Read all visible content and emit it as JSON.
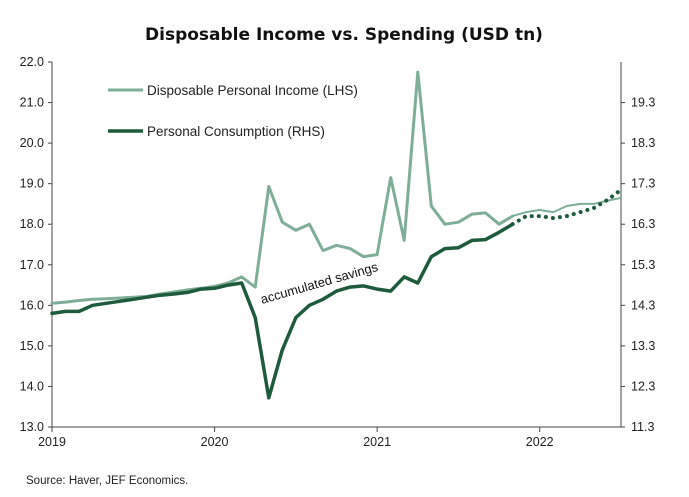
{
  "chart_data": {
    "type": "line",
    "title": "Disposable Income vs. Spending (USD tn)",
    "source": "Source: Haver, JEF Economics.",
    "annotation": "accumulated savings",
    "x_ticks": [
      "2019",
      "2020",
      "2021",
      "2022"
    ],
    "xlim": [
      "2019-01",
      "2022-07"
    ],
    "left_axis": {
      "ticks": [
        "22.0",
        "21.0",
        "20.0",
        "19.0",
        "18.0",
        "17.0",
        "16.0",
        "15.0",
        "14.0",
        "13.0"
      ],
      "ylim": [
        13.0,
        22.0
      ]
    },
    "right_axis": {
      "ticks": [
        "19.3",
        "18.3",
        "17.3",
        "16.3",
        "15.3",
        "14.3",
        "13.3",
        "12.3",
        "11.3"
      ],
      "ylim": [
        11.3,
        20.3
      ]
    },
    "legend_placement": "top-left",
    "series": [
      {
        "name": "Disposable Personal Income (LHS)",
        "axis": "left",
        "color": "#7fae98",
        "x": [
          "2019-01",
          "2019-02",
          "2019-03",
          "2019-04",
          "2019-05",
          "2019-06",
          "2019-07",
          "2019-08",
          "2019-09",
          "2019-10",
          "2019-11",
          "2019-12",
          "2020-01",
          "2020-02",
          "2020-03",
          "2020-04",
          "2020-05",
          "2020-06",
          "2020-07",
          "2020-08",
          "2020-09",
          "2020-10",
          "2020-11",
          "2020-12",
          "2021-01",
          "2021-02",
          "2021-03",
          "2021-04",
          "2021-05",
          "2021-06",
          "2021-07",
          "2021-08",
          "2021-09",
          "2021-10",
          "2021-11"
        ],
        "values": [
          16.05,
          16.08,
          16.12,
          16.15,
          16.16,
          16.18,
          16.2,
          16.22,
          16.28,
          16.33,
          16.38,
          16.42,
          16.47,
          16.55,
          16.7,
          16.45,
          18.93,
          18.05,
          17.85,
          18.0,
          17.35,
          17.48,
          17.4,
          17.2,
          17.25,
          19.15,
          17.6,
          21.75,
          18.45,
          18.0,
          18.05,
          18.25,
          18.28,
          18.0,
          18.2
        ],
        "forecast": {
          "x": [
            "2021-11",
            "2021-12",
            "2022-01",
            "2022-02",
            "2022-03",
            "2022-04",
            "2022-05",
            "2022-06",
            "2022-07"
          ],
          "values": [
            18.2,
            18.3,
            18.35,
            18.3,
            18.45,
            18.5,
            18.5,
            18.58,
            18.65
          ]
        }
      },
      {
        "name": "Personal Consumption (RHS)",
        "axis": "right",
        "color": "#1e5b3c",
        "x": [
          "2019-01",
          "2019-02",
          "2019-03",
          "2019-04",
          "2019-05",
          "2019-06",
          "2019-07",
          "2019-08",
          "2019-09",
          "2019-10",
          "2019-11",
          "2019-12",
          "2020-01",
          "2020-02",
          "2020-03",
          "2020-04",
          "2020-05",
          "2020-06",
          "2020-07",
          "2020-08",
          "2020-09",
          "2020-10",
          "2020-11",
          "2020-12",
          "2021-01",
          "2021-02",
          "2021-03",
          "2021-04",
          "2021-05",
          "2021-06",
          "2021-07",
          "2021-08",
          "2021-09",
          "2021-10",
          "2021-11"
        ],
        "values": [
          14.1,
          14.15,
          14.15,
          14.3,
          14.35,
          14.4,
          14.45,
          14.5,
          14.55,
          14.58,
          14.62,
          14.7,
          14.72,
          14.8,
          14.85,
          14.0,
          12.02,
          13.2,
          14.0,
          14.3,
          14.45,
          14.65,
          14.75,
          14.78,
          14.7,
          14.65,
          15.0,
          14.85,
          15.5,
          15.7,
          15.72,
          15.9,
          15.92,
          16.1,
          16.3
        ],
        "forecast": {
          "x": [
            "2021-11",
            "2021-12",
            "2022-01",
            "2022-02",
            "2022-03",
            "2022-04",
            "2022-05",
            "2022-06",
            "2022-07"
          ],
          "values": [
            16.3,
            16.5,
            16.5,
            16.45,
            16.5,
            16.6,
            16.7,
            16.9,
            17.15
          ]
        }
      }
    ]
  }
}
